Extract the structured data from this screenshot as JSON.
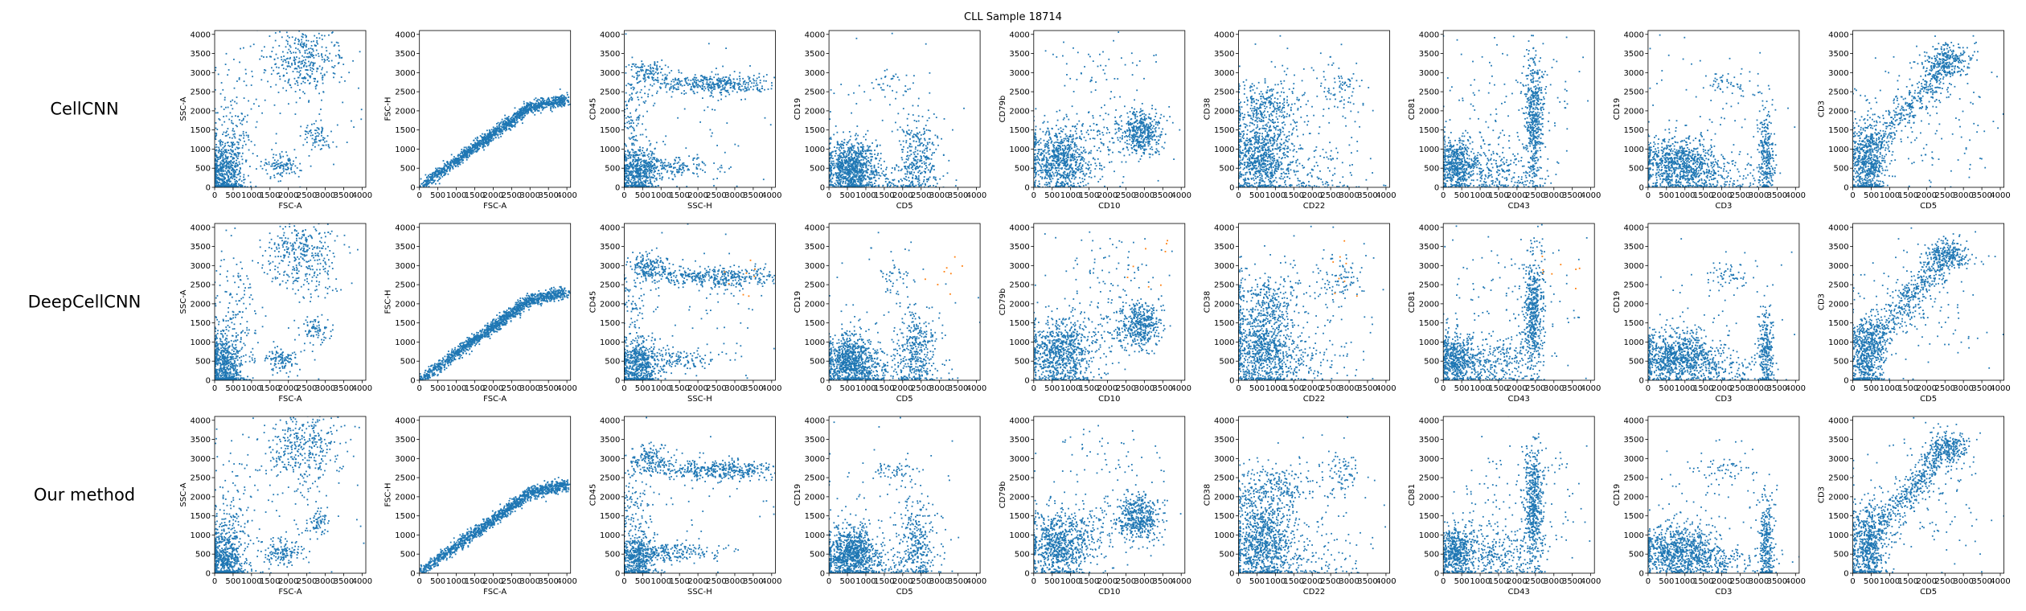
{
  "figure": {
    "title": "CLL Sample 18714",
    "row_labels": [
      "CellCNN",
      "DeepCellCNN",
      "Our method"
    ],
    "colors": {
      "points": "#1f77b4",
      "highlight": "#ff7f0e",
      "axes": "#000000"
    }
  },
  "chart_data": {
    "type": "scatter",
    "title": "CLL Sample 18714",
    "grid": false,
    "legend": "none",
    "xlim": [
      0,
      4100
    ],
    "ylim": [
      0,
      4100
    ],
    "ticks": [
      0,
      500,
      1000,
      1500,
      2000,
      2500,
      3000,
      3500,
      4000
    ],
    "tick_labels": [
      "0",
      "500",
      "1000",
      "1500",
      "2000",
      "2500",
      "3000",
      "3500",
      "4000"
    ],
    "rows": [
      "CellCNN",
      "DeepCellCNN",
      "Our method"
    ],
    "panels": [
      {
        "xlabel": "FSC-A",
        "ylabel": "SSC-A",
        "clusters": [
          {
            "cx": 250,
            "cy": 350,
            "sx": 250,
            "sy": 450,
            "w": 0.45
          },
          {
            "cx": 550,
            "cy": 1400,
            "sx": 300,
            "sy": 900,
            "w": 0.12
          },
          {
            "cx": 2400,
            "cy": 3300,
            "sx": 500,
            "sy": 500,
            "w": 0.25
          },
          {
            "cx": 1800,
            "cy": 550,
            "sx": 250,
            "sy": 150,
            "w": 0.08
          },
          {
            "cx": 2750,
            "cy": 1300,
            "sx": 200,
            "sy": 200,
            "w": 0.05
          },
          {
            "cx": 2000,
            "cy": 2000,
            "sx": 1300,
            "sy": 1300,
            "w": 0.05
          }
        ]
      },
      {
        "xlabel": "FSC-A",
        "ylabel": "FSC-H",
        "clusters": [
          {
            "line": [
              [
                0,
                0
              ],
              [
                3000,
                2100
              ],
              [
                4000,
                2300
              ]
            ],
            "sd": 80,
            "w": 1.0
          }
        ]
      },
      {
        "xlabel": "SSC-H",
        "ylabel": "CD45",
        "clusters": [
          {
            "cx": 400,
            "cy": 350,
            "sx": 250,
            "sy": 350,
            "w": 0.35
          },
          {
            "cx": 1200,
            "cy": 550,
            "sx": 700,
            "sy": 130,
            "w": 0.15
          },
          {
            "cx": 700,
            "cy": 3000,
            "sx": 250,
            "sy": 180,
            "w": 0.1
          },
          {
            "cx": 2500,
            "cy": 2700,
            "sx": 900,
            "sy": 130,
            "w": 0.28
          },
          {
            "cx": 300,
            "cy": 1800,
            "sx": 200,
            "sy": 700,
            "w": 0.07
          },
          {
            "cx": 2000,
            "cy": 1800,
            "sx": 1200,
            "sy": 1000,
            "w": 0.05
          }
        ]
      },
      {
        "xlabel": "CD5",
        "ylabel": "CD19",
        "clusters": [
          {
            "cx": 600,
            "cy": 500,
            "sx": 350,
            "sy": 350,
            "w": 0.6
          },
          {
            "cx": 2400,
            "cy": 800,
            "sx": 250,
            "sy": 500,
            "w": 0.2
          },
          {
            "cx": 1500,
            "cy": 200,
            "sx": 800,
            "sy": 200,
            "w": 0.12
          },
          {
            "cx": 1800,
            "cy": 2700,
            "sx": 300,
            "sy": 200,
            "w": 0.03
          },
          {
            "cx": 1800,
            "cy": 1800,
            "sx": 1000,
            "sy": 1000,
            "w": 0.05
          }
        ]
      },
      {
        "xlabel": "CD10",
        "ylabel": "CD79b",
        "clusters": [
          {
            "cx": 700,
            "cy": 700,
            "sx": 450,
            "sy": 450,
            "w": 0.55
          },
          {
            "cx": 2900,
            "cy": 1450,
            "sx": 300,
            "sy": 300,
            "w": 0.3
          },
          {
            "cx": 1800,
            "cy": 1200,
            "sx": 700,
            "sy": 500,
            "w": 0.1
          },
          {
            "cx": 2000,
            "cy": 3000,
            "sx": 900,
            "sy": 500,
            "w": 0.05
          }
        ]
      },
      {
        "xlabel": "CD22",
        "ylabel": "CD38",
        "clusters": [
          {
            "cx": 600,
            "cy": 800,
            "sx": 400,
            "sy": 550,
            "w": 0.55
          },
          {
            "cx": 800,
            "cy": 2100,
            "sx": 500,
            "sy": 400,
            "w": 0.2
          },
          {
            "cx": 1500,
            "cy": 400,
            "sx": 800,
            "sy": 400,
            "w": 0.12
          },
          {
            "cx": 2800,
            "cy": 2600,
            "sx": 300,
            "sy": 300,
            "w": 0.05
          },
          {
            "cx": 1800,
            "cy": 1800,
            "sx": 1000,
            "sy": 1000,
            "w": 0.08
          }
        ]
      },
      {
        "xlabel": "CD43",
        "ylabel": "CD81",
        "clusters": [
          {
            "cx": 350,
            "cy": 550,
            "sx": 250,
            "sy": 350,
            "w": 0.35
          },
          {
            "cx": 2450,
            "cy": 1800,
            "sx": 130,
            "sy": 800,
            "w": 0.35
          },
          {
            "cx": 1400,
            "cy": 450,
            "sx": 600,
            "sy": 350,
            "w": 0.2
          },
          {
            "cx": 2000,
            "cy": 2000,
            "sx": 1000,
            "sy": 1000,
            "w": 0.1
          }
        ]
      },
      {
        "xlabel": "CD3",
        "ylabel": "CD19",
        "clusters": [
          {
            "cx": 800,
            "cy": 600,
            "sx": 550,
            "sy": 350,
            "w": 0.6
          },
          {
            "cx": 3200,
            "cy": 800,
            "sx": 100,
            "sy": 550,
            "w": 0.2
          },
          {
            "cx": 1800,
            "cy": 300,
            "sx": 800,
            "sy": 250,
            "w": 0.12
          },
          {
            "cx": 2100,
            "cy": 2700,
            "sx": 400,
            "sy": 150,
            "w": 0.03
          },
          {
            "cx": 2000,
            "cy": 2000,
            "sx": 1000,
            "sy": 1000,
            "w": 0.05
          }
        ]
      },
      {
        "xlabel": "CD5",
        "ylabel": "CD3",
        "clusters": [
          {
            "cx": 400,
            "cy": 700,
            "sx": 250,
            "sy": 550,
            "w": 0.45
          },
          {
            "cx": 2600,
            "cy": 3300,
            "sx": 300,
            "sy": 200,
            "w": 0.15
          },
          {
            "line": [
              [
                500,
                1000
              ],
              [
                1800,
                2400
              ],
              [
                2600,
                3300
              ]
            ],
            "sd": 250,
            "w": 0.3
          },
          {
            "cx": 2000,
            "cy": 2000,
            "sx": 1000,
            "sy": 1000,
            "w": 0.1
          }
        ]
      }
    ]
  }
}
